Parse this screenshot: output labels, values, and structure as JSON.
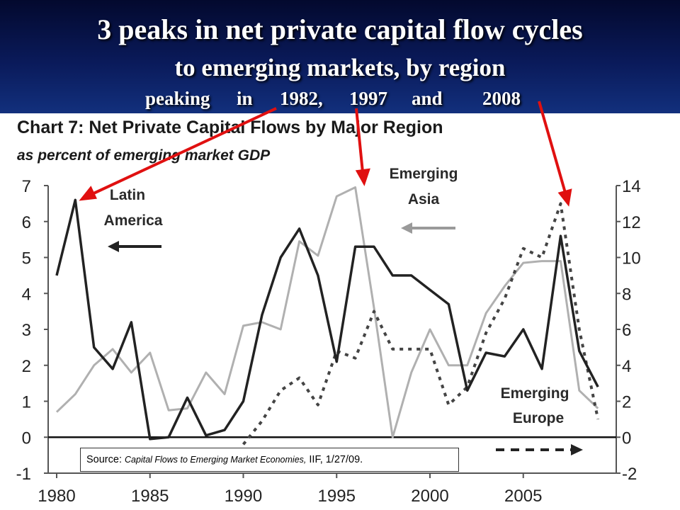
{
  "slide": {
    "title_line1": "3 peaks in net private capital flow cycles",
    "title_line2": "to emerging markets, by region",
    "subtitle": {
      "prefix": "peaking",
      "word_in": "in",
      "peak1": "1982,",
      "peak2": "1997",
      "word_and": "and",
      "peak3": "2008"
    },
    "source_label": "Source:",
    "source_title": "Capital Flows to Emerging Market Economies,",
    "source_rest": "IIF, 1/27/09."
  },
  "colors": {
    "header": "#0a1a5a",
    "latin_america": "#222222",
    "emerging_asia": "#b0b0b0",
    "emerging_europe": "#444444",
    "arrows": "#e01010"
  },
  "chart_data": {
    "type": "line",
    "title": "Chart 7: Net Private Capital Flows by Major Region",
    "subtitle": "as percent of emerging market GDP",
    "left_axis": {
      "ylim": [
        -1,
        7
      ],
      "ticks": [
        "-1",
        "0",
        "1",
        "2",
        "3",
        "4",
        "5",
        "6",
        "7"
      ]
    },
    "right_axis": {
      "ylim": [
        -2,
        14
      ],
      "ticks": [
        "-2",
        "0",
        "2",
        "4",
        "6",
        "8",
        "10",
        "12",
        "14"
      ]
    },
    "x_ticks": [
      "1980",
      "1985",
      "1990",
      "1995",
      "2000",
      "2005"
    ],
    "annotations": {
      "latin_america": [
        "Latin",
        "America"
      ],
      "emerging_asia": [
        "Emerging",
        "Asia"
      ],
      "emerging_europe": [
        "Emerging",
        "Europe"
      ]
    },
    "series": [
      {
        "name": "Latin America",
        "axis": "left",
        "style": "solid-dark",
        "x": [
          1980,
          1981,
          1982,
          1983,
          1984,
          1985,
          1986,
          1987,
          1988,
          1989,
          1990,
          1991,
          1992,
          1993,
          1994,
          1995,
          1996,
          1997,
          1998,
          1999,
          2000,
          2001,
          2002,
          2003,
          2004,
          2005,
          2006,
          2007,
          2008,
          2009
        ],
        "values": [
          4.5,
          6.6,
          2.5,
          1.9,
          3.2,
          -0.05,
          0.0,
          1.1,
          0.05,
          0.2,
          1.0,
          3.4,
          5.0,
          5.8,
          4.5,
          2.1,
          5.3,
          5.3,
          4.5,
          4.5,
          4.1,
          3.7,
          1.3,
          2.35,
          2.25,
          3.0,
          1.9,
          5.6,
          2.4,
          1.4
        ]
      },
      {
        "name": "Emerging Asia",
        "axis": "left",
        "style": "solid-gray",
        "x": [
          1980,
          1981,
          1982,
          1983,
          1984,
          1985,
          1986,
          1987,
          1988,
          1989,
          1990,
          1991,
          1992,
          1993,
          1994,
          1995,
          1996,
          1997,
          1998,
          1999,
          2000,
          2001,
          2002,
          2003,
          2004,
          2005,
          2006,
          2007,
          2008,
          2009
        ],
        "values": [
          0.7,
          1.2,
          2.0,
          2.45,
          1.8,
          2.35,
          0.75,
          0.8,
          1.8,
          1.2,
          3.1,
          3.2,
          3.0,
          5.45,
          5.05,
          6.7,
          6.95,
          3.6,
          0.0,
          1.8,
          3.0,
          2.0,
          2.0,
          3.45,
          4.2,
          4.85,
          4.9,
          4.9,
          1.3,
          0.8
        ]
      },
      {
        "name": "Emerging Europe",
        "axis": "right",
        "style": "dashed",
        "x": [
          1990,
          1991,
          1992,
          1993,
          1994,
          1995,
          1996,
          1997,
          1998,
          1999,
          2000,
          2001,
          2002,
          2003,
          2004,
          2005,
          2006,
          2007,
          2008,
          2009
        ],
        "values": [
          -0.4,
          0.9,
          2.6,
          3.3,
          1.8,
          4.8,
          4.4,
          7.0,
          4.9,
          4.9,
          4.9,
          1.8,
          2.8,
          5.8,
          7.7,
          10.5,
          10.0,
          13.0,
          6.0,
          1.0
        ]
      }
    ]
  }
}
